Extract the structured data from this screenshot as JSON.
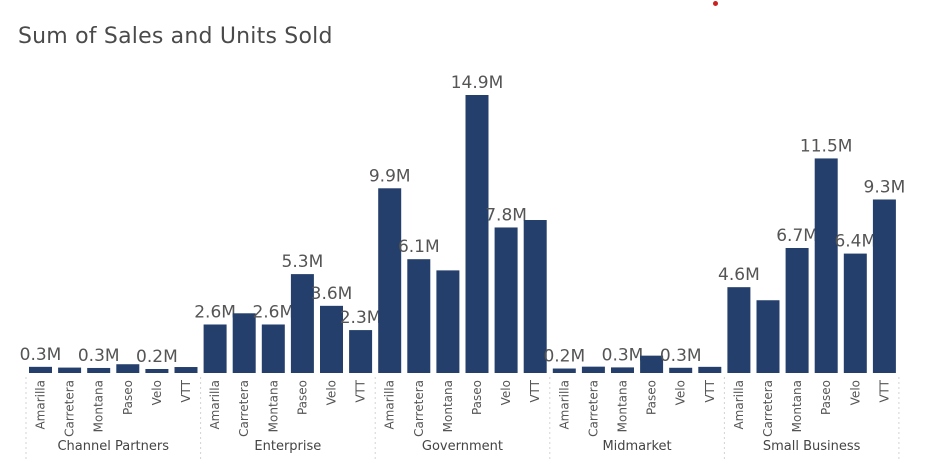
{
  "title": "Sum of Sales and Units Sold",
  "colors": {
    "bar": "#243f6b",
    "accent_dot": "#cc1f1f"
  },
  "chart_data": {
    "type": "bar",
    "title": "Sum of Sales and Units Sold",
    "xlabel": "",
    "ylabel": "",
    "grid": false,
    "groups": [
      {
        "name": "Channel Partners",
        "bars": [
          {
            "category": "Amarilla",
            "value": 0.33,
            "label": "0.3M"
          },
          {
            "category": "Carretera",
            "value": 0.29,
            "label": ""
          },
          {
            "category": "Montana",
            "value": 0.27,
            "label": "0.3M"
          },
          {
            "category": "Paseo",
            "value": 0.47,
            "label": ""
          },
          {
            "category": "Velo",
            "value": 0.17,
            "label": "0.2M"
          },
          {
            "category": "VTT",
            "value": 0.32,
            "label": ""
          }
        ]
      },
      {
        "name": "Enterprise",
        "bars": [
          {
            "category": "Amarilla",
            "value": 2.6,
            "label": "2.6M"
          },
          {
            "category": "Carretera",
            "value": 3.2,
            "label": ""
          },
          {
            "category": "Montana",
            "value": 2.6,
            "label": "2.6M"
          },
          {
            "category": "Paseo",
            "value": 5.3,
            "label": "5.3M"
          },
          {
            "category": "Velo",
            "value": 3.6,
            "label": "3.6M"
          },
          {
            "category": "VTT",
            "value": 2.3,
            "label": "2.3M"
          }
        ]
      },
      {
        "name": "Government",
        "bars": [
          {
            "category": "Amarilla",
            "value": 9.9,
            "label": "9.9M"
          },
          {
            "category": "Carretera",
            "value": 6.1,
            "label": "6.1M"
          },
          {
            "category": "Montana",
            "value": 5.5,
            "label": ""
          },
          {
            "category": "Paseo",
            "value": 14.9,
            "label": "14.9M"
          },
          {
            "category": "Velo",
            "value": 7.8,
            "label": "7.8M"
          },
          {
            "category": "VTT",
            "value": 8.2,
            "label": ""
          }
        ]
      },
      {
        "name": "Midmarket",
        "bars": [
          {
            "category": "Amarilla",
            "value": 0.24,
            "label": "0.2M"
          },
          {
            "category": "Carretera",
            "value": 0.34,
            "label": ""
          },
          {
            "category": "Montana",
            "value": 0.3,
            "label": "0.3M"
          },
          {
            "category": "Paseo",
            "value": 0.93,
            "label": ""
          },
          {
            "category": "Velo",
            "value": 0.28,
            "label": "0.3M"
          },
          {
            "category": "VTT",
            "value": 0.33,
            "label": ""
          }
        ]
      },
      {
        "name": "Small Business",
        "bars": [
          {
            "category": "Amarilla",
            "value": 4.6,
            "label": "4.6M"
          },
          {
            "category": "Carretera",
            "value": 3.9,
            "label": ""
          },
          {
            "category": "Montana",
            "value": 6.7,
            "label": "6.7M"
          },
          {
            "category": "Paseo",
            "value": 11.5,
            "label": "11.5M"
          },
          {
            "category": "Velo",
            "value": 6.4,
            "label": "6.4M"
          },
          {
            "category": "VTT",
            "value": 9.3,
            "label": "9.3M"
          }
        ]
      }
    ],
    "ylim": [
      0,
      14.9
    ]
  }
}
